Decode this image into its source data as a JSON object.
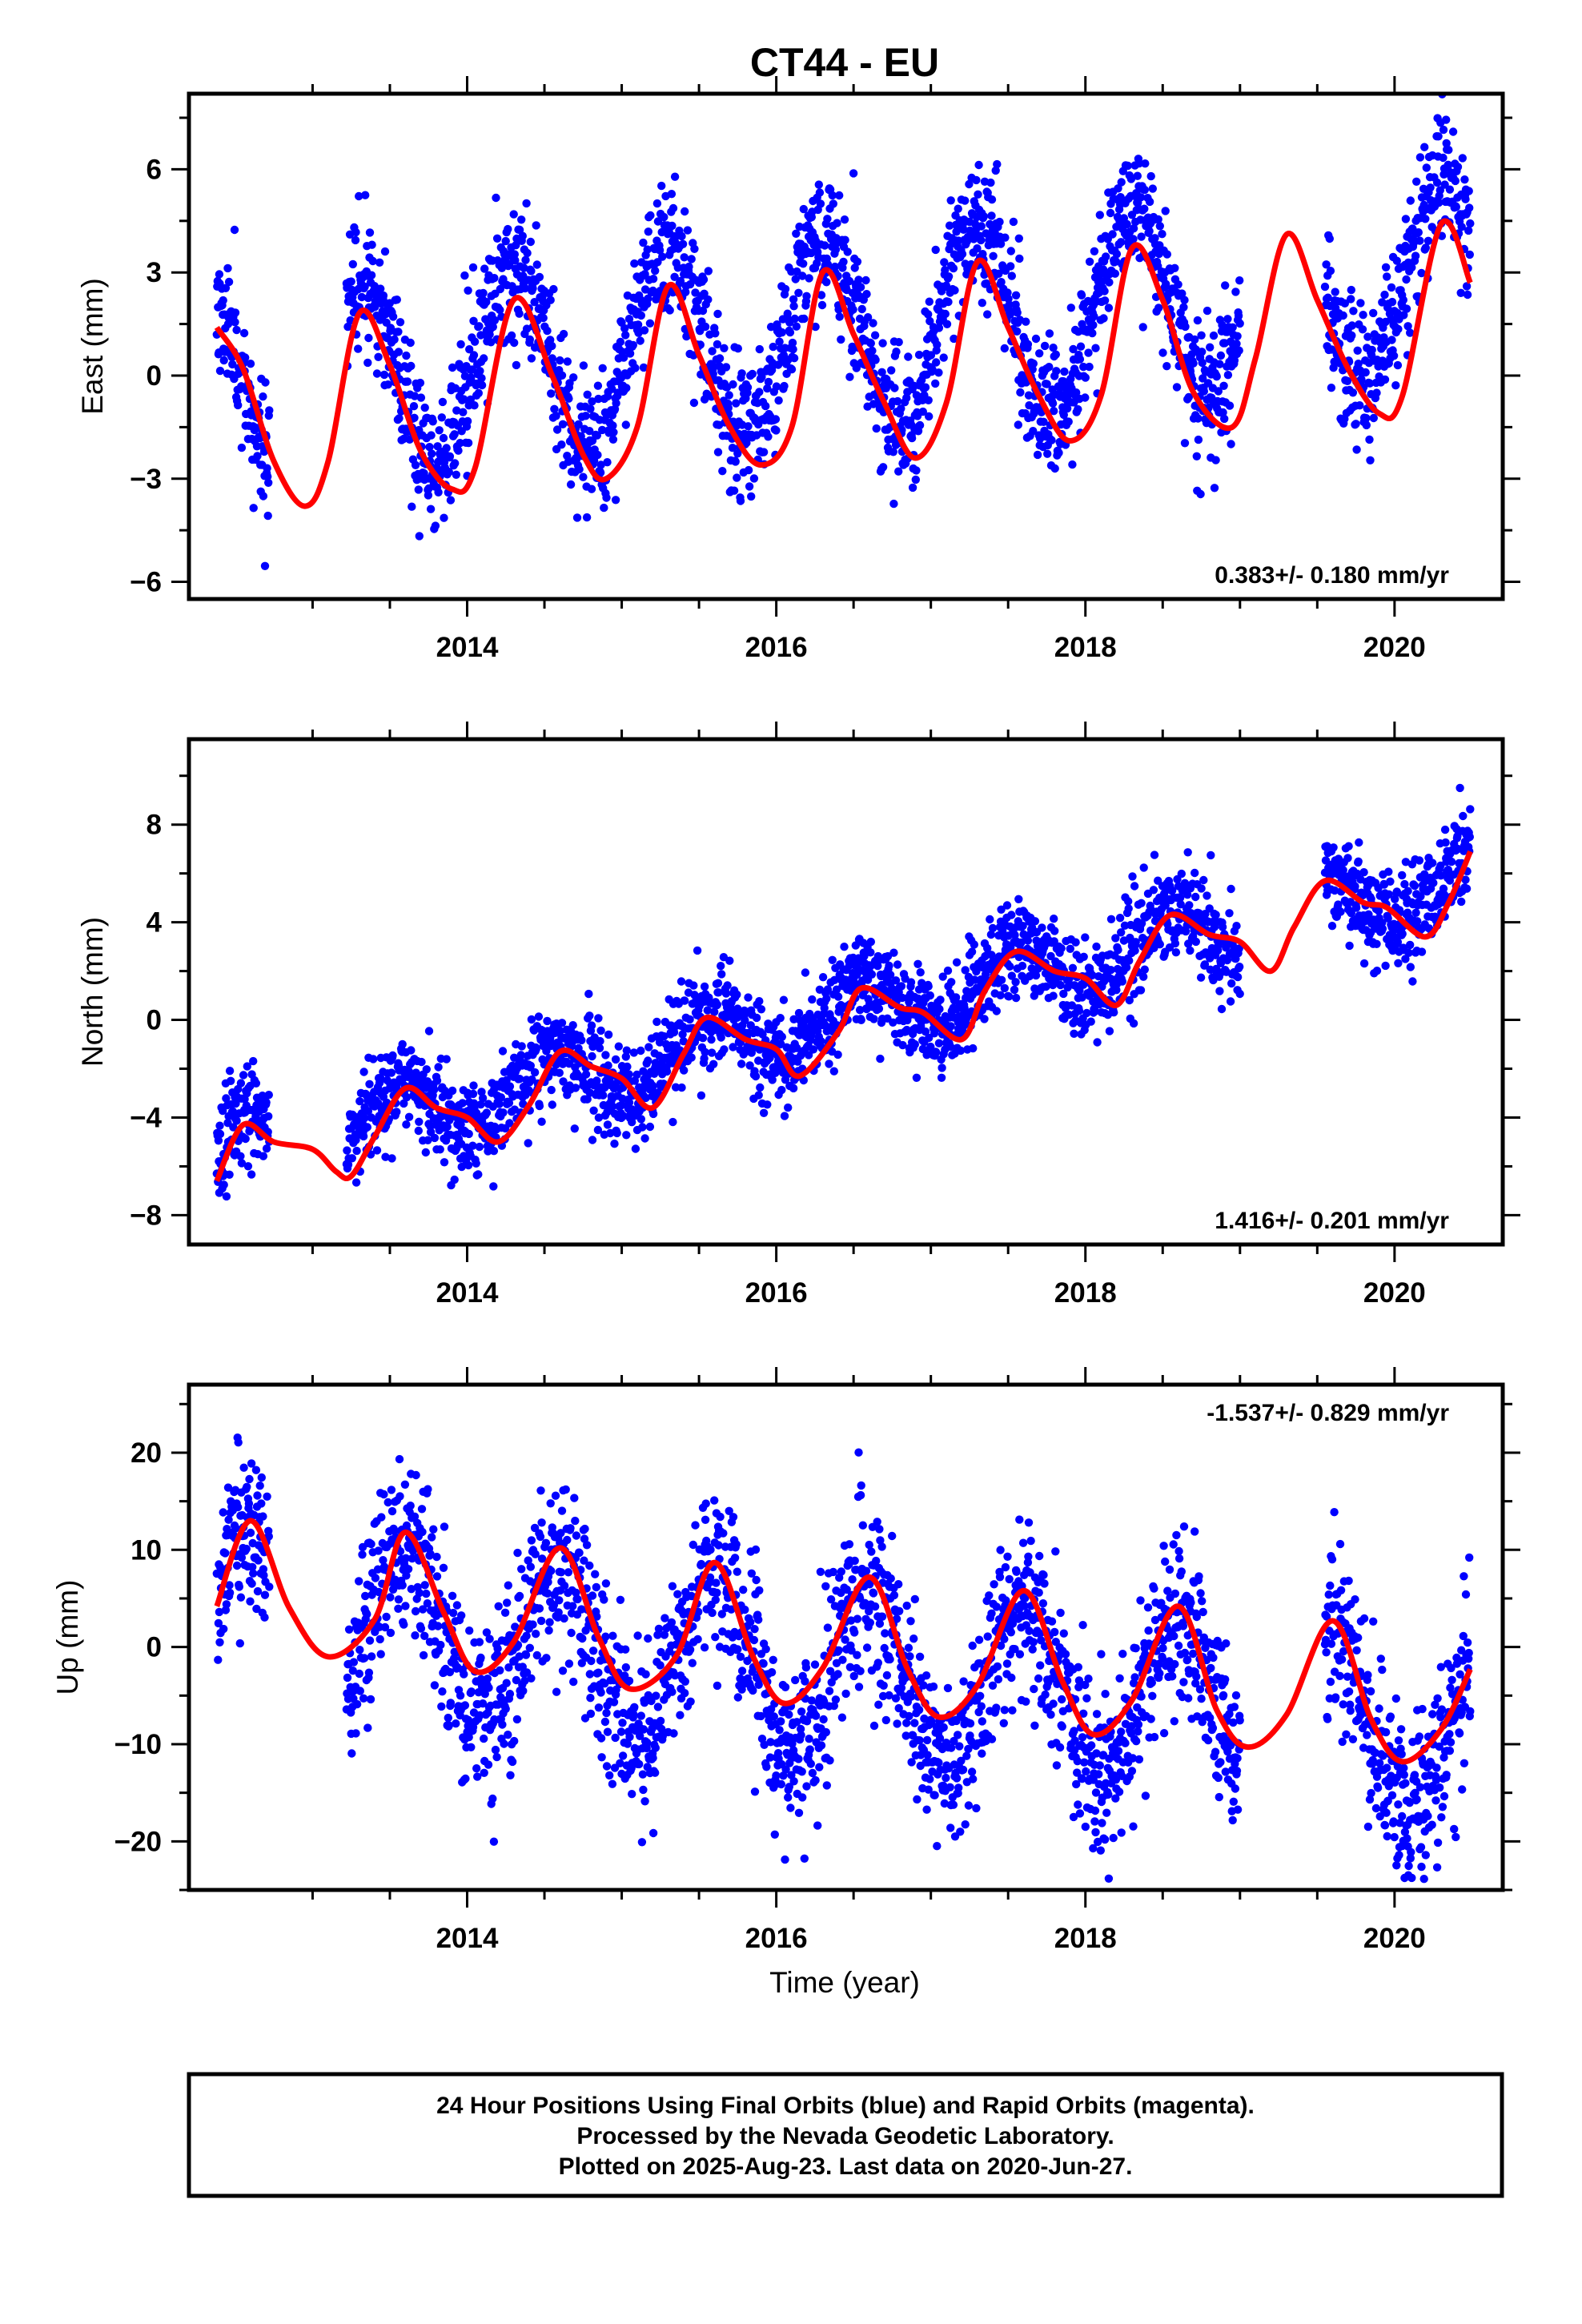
{
  "chart_data": {
    "title": "CT44 - EU",
    "type": "scatter",
    "xlabel": "Time (year)",
    "xlim": [
      2012.2,
      2020.7
    ],
    "x_ticks": [
      2014,
      2016,
      2018,
      2020
    ],
    "panels": [
      {
        "id": "east",
        "ylabel": "East (mm)",
        "ylim": [
          -6.5,
          8.2
        ],
        "y_ticks": [
          -6,
          -3,
          0,
          3,
          6
        ],
        "rate_label": "0.383+/- 0.180 mm/yr",
        "rate_position": "bottom-right",
        "series": [
          {
            "marker": "dot",
            "color": "#0000ff",
            "data_ranges": [
              [
                2012.38,
                2012.72
              ],
              [
                2013.22,
                2019.0
              ],
              [
                2019.55,
                2020.49
              ]
            ],
            "model": {
              "offset": -0.3,
              "rate": 0.383,
              "annual_amp": 2.8,
              "annual_phase_peak": 0.3,
              "scatter": 1.0,
              "seed": 11
            }
          }
        ],
        "fit_color": "#ff0000",
        "fit": [
          [
            2012.38,
            1.4
          ],
          [
            2012.55,
            0.2
          ],
          [
            2012.75,
            -2.5
          ],
          [
            2012.95,
            -3.8
          ],
          [
            2013.1,
            -2.5
          ],
          [
            2013.3,
            1.8
          ],
          [
            2013.5,
            0.3
          ],
          [
            2013.7,
            -2.2
          ],
          [
            2013.9,
            -3.3
          ],
          [
            2014.05,
            -2.7
          ],
          [
            2014.3,
            2.2
          ],
          [
            2014.55,
            0.0
          ],
          [
            2014.75,
            -2.3
          ],
          [
            2014.9,
            -3.0
          ],
          [
            2015.1,
            -1.5
          ],
          [
            2015.3,
            2.6
          ],
          [
            2015.5,
            0.6
          ],
          [
            2015.7,
            -1.5
          ],
          [
            2015.9,
            -2.6
          ],
          [
            2016.1,
            -1.5
          ],
          [
            2016.3,
            3.0
          ],
          [
            2016.5,
            1.2
          ],
          [
            2016.7,
            -0.8
          ],
          [
            2016.9,
            -2.4
          ],
          [
            2017.1,
            -0.8
          ],
          [
            2017.3,
            3.3
          ],
          [
            2017.5,
            1.4
          ],
          [
            2017.7,
            -0.6
          ],
          [
            2017.9,
            -1.9
          ],
          [
            2018.1,
            -0.6
          ],
          [
            2018.3,
            3.7
          ],
          [
            2018.5,
            2.2
          ],
          [
            2018.7,
            -0.5
          ],
          [
            2018.95,
            -1.5
          ],
          [
            2019.1,
            0.5
          ],
          [
            2019.3,
            4.1
          ],
          [
            2019.5,
            2.2
          ],
          [
            2019.7,
            0.2
          ],
          [
            2019.9,
            -1.1
          ],
          [
            2020.05,
            -0.6
          ],
          [
            2020.3,
            4.4
          ],
          [
            2020.49,
            2.7
          ]
        ]
      },
      {
        "id": "north",
        "ylabel": "North (mm)",
        "ylim": [
          -9.2,
          11.5
        ],
        "y_ticks": [
          -8,
          -4,
          0,
          4,
          8
        ],
        "rate_label": "1.416+/- 0.201 mm/yr",
        "rate_position": "bottom-right",
        "series": [
          {
            "marker": "dot",
            "color": "#0000ff",
            "data_ranges": [
              [
                2012.38,
                2012.72
              ],
              [
                2013.22,
                2019.0
              ],
              [
                2019.55,
                2020.49
              ]
            ],
            "model": {
              "offset": -5.6,
              "rate": 1.416,
              "annual_amp": 1.3,
              "annual_phase_peak": 0.55,
              "scatter": 1.0,
              "seed": 23
            }
          }
        ],
        "fit_color": "#ff0000",
        "fit": [
          [
            2012.38,
            -6.6
          ],
          [
            2012.55,
            -4.3
          ],
          [
            2012.75,
            -5.0
          ],
          [
            2013.0,
            -5.3
          ],
          [
            2013.15,
            -6.2
          ],
          [
            2013.25,
            -6.4
          ],
          [
            2013.4,
            -4.8
          ],
          [
            2013.6,
            -2.8
          ],
          [
            2013.8,
            -3.6
          ],
          [
            2014.0,
            -4.0
          ],
          [
            2014.2,
            -5.0
          ],
          [
            2014.4,
            -3.5
          ],
          [
            2014.6,
            -1.3
          ],
          [
            2014.8,
            -1.9
          ],
          [
            2015.0,
            -2.4
          ],
          [
            2015.2,
            -3.6
          ],
          [
            2015.4,
            -1.4
          ],
          [
            2015.55,
            0.1
          ],
          [
            2015.8,
            -0.8
          ],
          [
            2016.0,
            -1.2
          ],
          [
            2016.15,
            -2.3
          ],
          [
            2016.4,
            -0.5
          ],
          [
            2016.55,
            1.3
          ],
          [
            2016.8,
            0.5
          ],
          [
            2016.95,
            0.3
          ],
          [
            2017.2,
            -0.8
          ],
          [
            2017.35,
            1.2
          ],
          [
            2017.55,
            2.8
          ],
          [
            2017.8,
            2.0
          ],
          [
            2018.0,
            1.7
          ],
          [
            2018.2,
            0.6
          ],
          [
            2018.35,
            2.4
          ],
          [
            2018.55,
            4.3
          ],
          [
            2018.8,
            3.5
          ],
          [
            2019.0,
            3.2
          ],
          [
            2019.2,
            2.0
          ],
          [
            2019.35,
            3.8
          ],
          [
            2019.55,
            5.7
          ],
          [
            2019.8,
            4.8
          ],
          [
            2019.95,
            4.6
          ],
          [
            2020.2,
            3.4
          ],
          [
            2020.35,
            4.8
          ],
          [
            2020.49,
            6.9
          ]
        ]
      },
      {
        "id": "up",
        "ylabel": "Up (mm)",
        "ylim": [
          -25,
          27
        ],
        "y_ticks": [
          -20,
          -10,
          0,
          10,
          20
        ],
        "rate_label": "-1.537+/- 0.829 mm/yr",
        "rate_position": "top-right",
        "series": [
          {
            "marker": "dot",
            "color": "#0000ff",
            "data_ranges": [
              [
                2012.38,
                2012.72
              ],
              [
                2013.22,
                2019.0
              ],
              [
                2019.55,
                2020.49
              ]
            ],
            "model": {
              "offset": 3.5,
              "rate": -1.537,
              "annual_amp": 8.5,
              "annual_phase_peak": 0.6,
              "scatter": 4.5,
              "seed": 37
            }
          }
        ],
        "fit_color": "#ff0000",
        "fit": [
          [
            2012.38,
            4.2
          ],
          [
            2012.6,
            13.0
          ],
          [
            2012.85,
            4.0
          ],
          [
            2013.1,
            -1.0
          ],
          [
            2013.4,
            2.8
          ],
          [
            2013.6,
            11.8
          ],
          [
            2013.85,
            3.5
          ],
          [
            2014.05,
            -2.5
          ],
          [
            2014.3,
            0.5
          ],
          [
            2014.6,
            10.2
          ],
          [
            2014.85,
            1.0
          ],
          [
            2015.05,
            -4.3
          ],
          [
            2015.35,
            -1.0
          ],
          [
            2015.6,
            8.7
          ],
          [
            2015.85,
            -1.0
          ],
          [
            2016.05,
            -5.8
          ],
          [
            2016.3,
            -2.2
          ],
          [
            2016.6,
            7.2
          ],
          [
            2016.85,
            -2.3
          ],
          [
            2017.05,
            -7.2
          ],
          [
            2017.3,
            -4.0
          ],
          [
            2017.6,
            5.8
          ],
          [
            2017.85,
            -3.5
          ],
          [
            2018.05,
            -9.0
          ],
          [
            2018.3,
            -5.5
          ],
          [
            2018.6,
            4.2
          ],
          [
            2018.85,
            -6.5
          ],
          [
            2019.05,
            -10.3
          ],
          [
            2019.3,
            -7.0
          ],
          [
            2019.6,
            2.7
          ],
          [
            2019.85,
            -7.5
          ],
          [
            2020.05,
            -11.8
          ],
          [
            2020.3,
            -8.5
          ],
          [
            2020.49,
            -2.3
          ]
        ]
      }
    ]
  },
  "footer": {
    "line1": "24 Hour Positions Using Final Orbits (blue) and Rapid Orbits (magenta).",
    "line2": "Processed by the Nevada Geodetic Laboratory.",
    "line3": "Plotted on 2025-Aug-23. Last data on 2020-Jun-27."
  }
}
